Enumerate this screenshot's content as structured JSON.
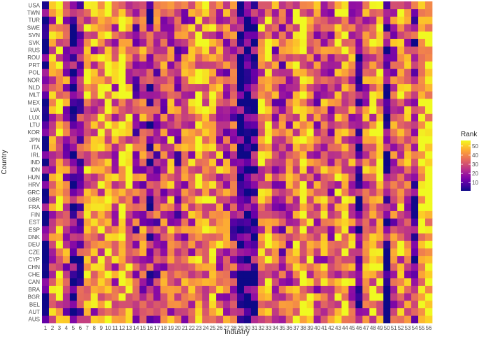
{
  "chart_data": {
    "type": "heatmap",
    "xlabel": "Industry",
    "ylabel": "Country",
    "x_categories": [
      "1",
      "2",
      "3",
      "4",
      "5",
      "6",
      "7",
      "8",
      "9",
      "10",
      "11",
      "12",
      "13",
      "14",
      "15",
      "16",
      "17",
      "18",
      "19",
      "20",
      "21",
      "22",
      "23",
      "24",
      "25",
      "26",
      "27",
      "28",
      "29",
      "30",
      "31",
      "32",
      "33",
      "34",
      "35",
      "36",
      "37",
      "38",
      "39",
      "40",
      "41",
      "42",
      "43",
      "44",
      "45",
      "46",
      "47",
      "48",
      "49",
      "50",
      "51",
      "52",
      "53",
      "54",
      "55",
      "56"
    ],
    "y_categories": [
      "AUS",
      "AUT",
      "BEL",
      "BGR",
      "BRA",
      "CAN",
      "CHE",
      "CHN",
      "CYP",
      "CZE",
      "DEU",
      "DNK",
      "ESP",
      "EST",
      "FIN",
      "FRA",
      "GBR",
      "GRC",
      "HRV",
      "HUN",
      "IDN",
      "IND",
      "IRL",
      "ITA",
      "JPN",
      "KOR",
      "LTU",
      "LUX",
      "LVA",
      "MEX",
      "MLT",
      "NLD",
      "NOR",
      "POL",
      "PRT",
      "ROU",
      "RUS",
      "SVK",
      "SVN",
      "SWE",
      "TUR",
      "TWN",
      "USA"
    ],
    "colorscale": "plasma",
    "value_range": [
      1,
      56
    ],
    "legend": {
      "title": "Rank",
      "ticks": [
        10,
        20,
        30,
        40,
        50
      ],
      "tick_labels": [
        "10",
        "20",
        "30",
        "40",
        "50"
      ],
      "position": "right"
    },
    "column_bias": [
      5,
      35,
      45,
      30,
      8,
      20,
      40,
      35,
      40,
      45,
      35,
      50,
      40,
      25,
      30,
      20,
      25,
      30,
      35,
      25,
      30,
      35,
      45,
      40,
      45,
      35,
      30,
      25,
      8,
      5,
      10,
      40,
      45,
      30,
      25,
      35,
      40,
      45,
      40,
      30,
      35,
      30,
      40,
      45,
      35,
      10,
      35,
      40,
      45,
      10,
      30,
      40,
      35,
      20,
      52,
      55
    ],
    "values_note": ""
  }
}
